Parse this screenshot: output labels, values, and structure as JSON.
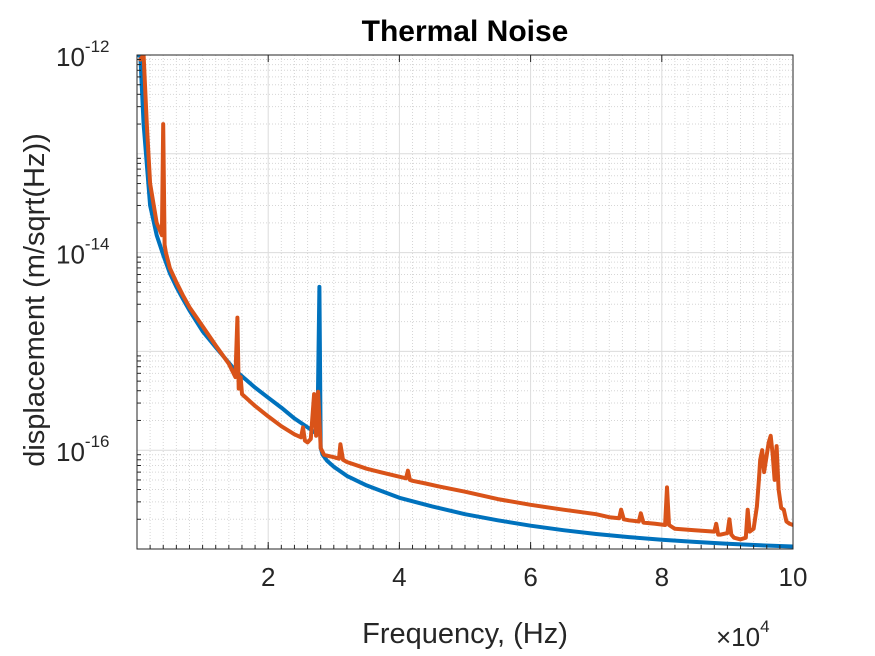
{
  "chart_data": {
    "type": "line",
    "title": "Thermal Noise",
    "xlabel": "Frequency, (Hz)",
    "ylabel": "displacement (m/sqrt(Hz))",
    "x_multiplier_label": "×10",
    "x_multiplier_exponent": "4",
    "x_scale": "linear",
    "y_scale": "log",
    "xlim": [
      0,
      100000
    ],
    "ylim": [
      1e-17,
      1e-12
    ],
    "grid": true,
    "minor_grid": true,
    "legend": "none",
    "x_ticks": [
      {
        "value": 20000,
        "label": "2"
      },
      {
        "value": 40000,
        "label": "4"
      },
      {
        "value": 60000,
        "label": "6"
      },
      {
        "value": 80000,
        "label": "8"
      },
      {
        "value": 100000,
        "label": "10"
      }
    ],
    "y_ticks": [
      {
        "value": 1e-12,
        "base": "10",
        "exp": "-12"
      },
      {
        "value": 1e-14,
        "base": "10",
        "exp": "-14"
      },
      {
        "value": 1e-16,
        "base": "10",
        "exp": "-16"
      }
    ],
    "series": [
      {
        "color": "#0072BD",
        "x": [
          200,
          500,
          1000,
          2000,
          3000,
          4000,
          5000,
          6000,
          7000,
          8000,
          10000,
          12000,
          15000,
          18000,
          20000,
          22000,
          24000,
          26000,
          27500,
          27800,
          28000,
          28300,
          29000,
          30000,
          32000,
          35000,
          40000,
          45000,
          50000,
          55000,
          60000,
          65000,
          70000,
          75000,
          80000,
          85000,
          90000,
          95000,
          100000
        ],
        "y": [
          1e-12,
          1e-12,
          2e-13,
          3e-14,
          1.5e-14,
          9.5e-15,
          6.2e-15,
          4.5e-15,
          3.4e-15,
          2.6e-15,
          1.6e-15,
          1.1e-15,
          6.4e-16,
          4.3e-16,
          3.4e-16,
          2.7e-16,
          2.1e-16,
          1.7e-16,
          1.45e-16,
          4.5e-15,
          1.05e-16,
          9e-17,
          7.8e-17,
          6.8e-17,
          5.5e-17,
          4.4e-17,
          3.3e-17,
          2.7e-17,
          2.25e-17,
          1.95e-17,
          1.72e-17,
          1.55e-17,
          1.42e-17,
          1.32e-17,
          1.24e-17,
          1.18e-17,
          1.13e-17,
          1.09e-17,
          1.06e-17
        ]
      },
      {
        "color": "#D95319",
        "x": [
          500,
          1000,
          1500,
          2000,
          3000,
          3800,
          4000,
          4200,
          4400,
          5000,
          6000,
          7000,
          8000,
          10000,
          12000,
          14000,
          15000,
          15300,
          15500,
          15800,
          16000,
          18000,
          20000,
          22000,
          24000,
          25000,
          25300,
          25600,
          26000,
          26500,
          27000,
          27300,
          27600,
          28000,
          28500,
          29000,
          30000,
          30800,
          31000,
          31400,
          32000,
          35000,
          38000,
          41000,
          41300,
          41600,
          42000,
          44000,
          46000,
          50000,
          55000,
          60000,
          65000,
          70000,
          72000,
          73500,
          73800,
          74200,
          75000,
          76500,
          76800,
          77200,
          79000,
          80500,
          80800,
          81100,
          82000,
          85000,
          88000,
          88300,
          88600,
          89000,
          90000,
          90300,
          90600,
          91000,
          92000,
          92800,
          93100,
          93400,
          94000,
          94500,
          94800,
          95000,
          95300,
          95600,
          96000,
          96300,
          96600,
          96900,
          97200,
          97500,
          97800,
          98200,
          98600,
          99000,
          99500,
          100000
        ],
        "y": [
          9e-13,
          1e-12,
          2e-13,
          5e-14,
          2e-14,
          1.5e-14,
          2e-13,
          1.2e-14,
          1e-14,
          7e-15,
          5e-15,
          3.7e-15,
          2.8e-15,
          1.8e-15,
          1.15e-15,
          7.5e-16,
          5.5e-16,
          2.2e-15,
          4.2e-16,
          5.5e-16,
          3.7e-16,
          2.8e-16,
          2.2e-16,
          1.75e-16,
          1.45e-16,
          1.35e-16,
          1.7e-16,
          1.25e-16,
          1.2e-16,
          1.3e-16,
          3.7e-16,
          1.4e-16,
          3.9e-16,
          1.05e-16,
          9e-17,
          8.8e-17,
          8.5e-17,
          8.2e-17,
          1.15e-16,
          8e-17,
          7.6e-17,
          6.5e-17,
          5.8e-17,
          5.2e-17,
          6.2e-17,
          5e-17,
          4.9e-17,
          4.6e-17,
          4.3e-17,
          3.8e-17,
          3.2e-17,
          2.8e-17,
          2.5e-17,
          2.25e-17,
          2.1e-17,
          2.05e-17,
          2.5e-17,
          2e-17,
          1.95e-17,
          1.9e-17,
          2.3e-17,
          1.85e-17,
          1.8e-17,
          1.75e-17,
          4.2e-17,
          1.75e-17,
          1.6e-17,
          1.55e-17,
          1.5e-17,
          1.8e-17,
          1.4e-17,
          1.4e-17,
          1.45e-17,
          2e-17,
          1.4e-17,
          1.3e-17,
          1.25e-17,
          1.3e-17,
          2.5e-17,
          1.5e-17,
          1.6e-17,
          2.7e-17,
          5e-17,
          8e-17,
          1e-16,
          6e-17,
          9e-17,
          1.2e-16,
          1.4e-16,
          9e-17,
          5e-17,
          1.1e-16,
          4e-17,
          2.6e-17,
          2.5e-17,
          1.9e-17,
          1.8e-17,
          1.75e-17
        ]
      }
    ]
  }
}
